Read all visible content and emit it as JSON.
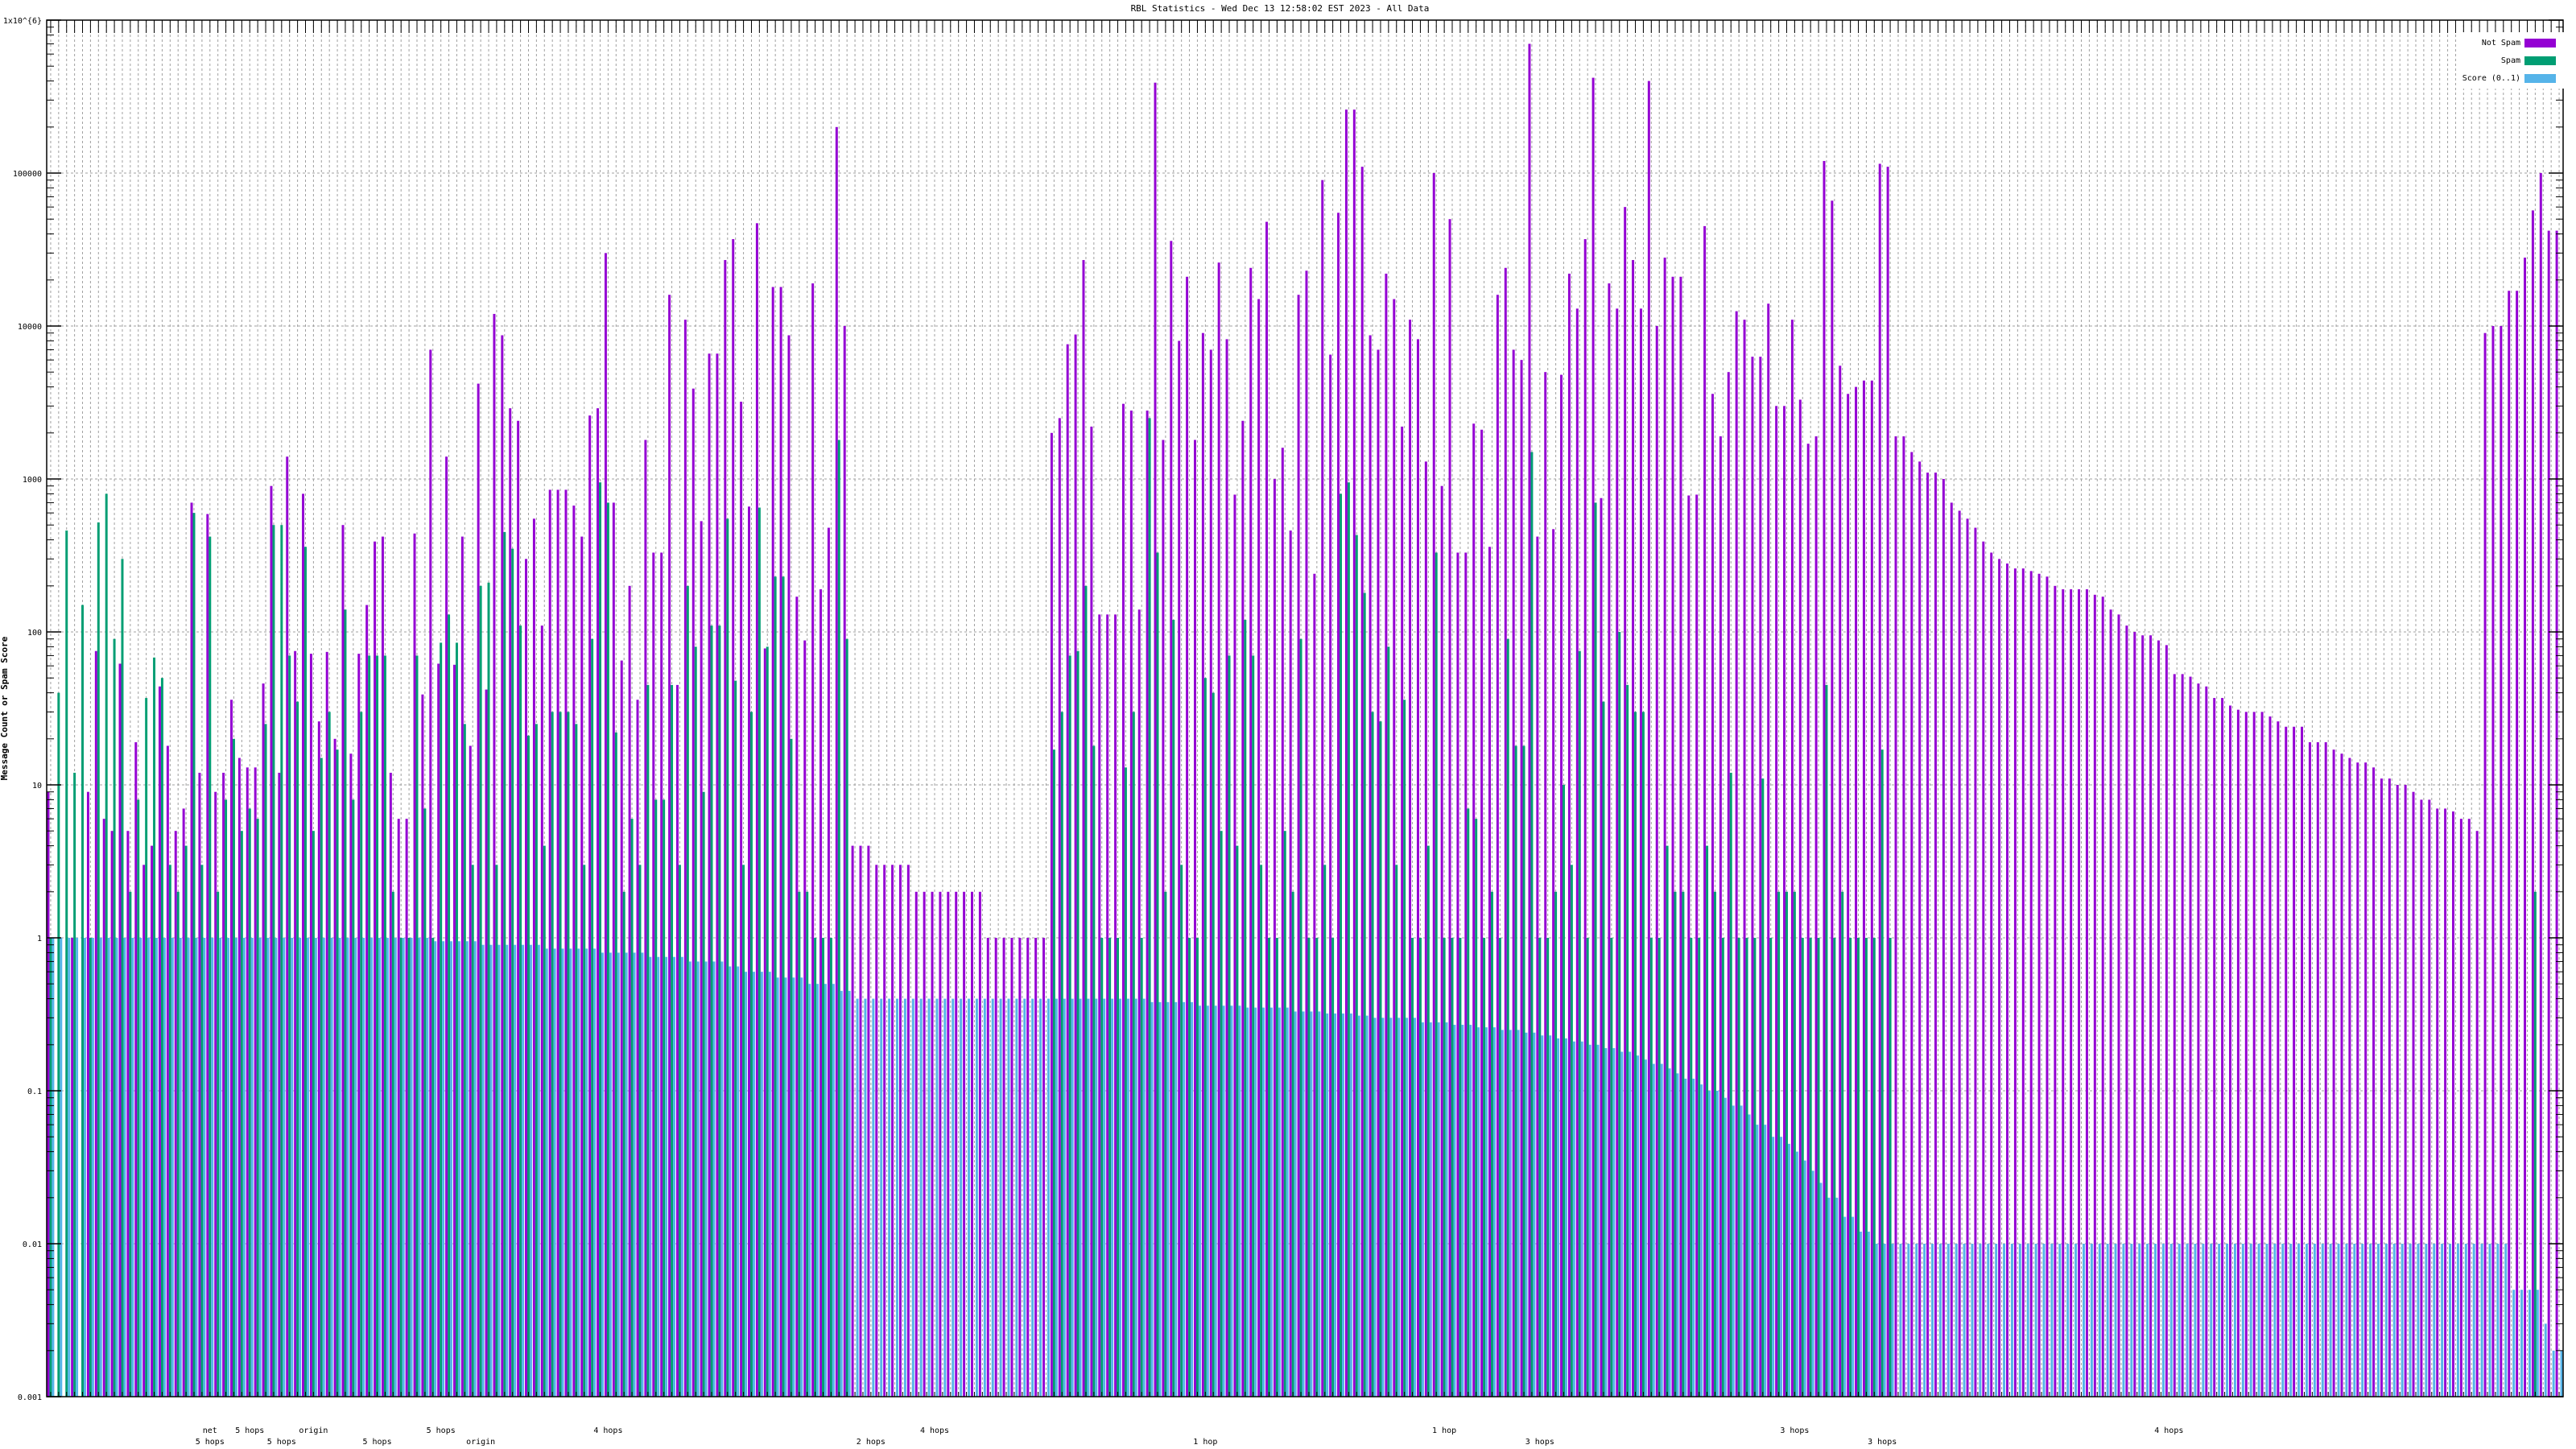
{
  "chart_data": {
    "type": "bar",
    "title": "RBL Statistics - Wed Dec 13 12:58:02 EST 2023 - All Data",
    "ylabel": "Message Count or Spam Score",
    "xlabel": "",
    "yscale": "log",
    "ylim": [
      0.001,
      1000000
    ],
    "y_ticks": [
      "0.001",
      "0.01",
      "0.1",
      "1",
      "10",
      "100",
      "1000",
      "10000",
      "100000",
      "1x10^{6}"
    ],
    "grid": true,
    "legend_position": "top-right",
    "series_names": [
      "Not Spam",
      "Spam",
      "Score (0..1)"
    ],
    "colors": {
      "not_spam": "#9400d3",
      "spam": "#009e73",
      "score": "#56b4e9"
    },
    "x_annotations": [
      {
        "group": 20,
        "text": "net"
      },
      {
        "group": 20,
        "text": "5 hops"
      },
      {
        "group": 25,
        "text": "5 hops"
      },
      {
        "group": 29,
        "text": "5 hops"
      },
      {
        "group": 33,
        "text": "origin"
      },
      {
        "group": 41,
        "text": "5 hops"
      },
      {
        "group": 49,
        "text": "5 hops"
      },
      {
        "group": 54,
        "text": "origin"
      },
      {
        "group": 70,
        "text": "4 hops"
      },
      {
        "group": 103,
        "text": "2 hops"
      },
      {
        "group": 111,
        "text": "4 hops"
      },
      {
        "group": 145,
        "text": "1 hop"
      },
      {
        "group": 175,
        "text": "1 hop"
      },
      {
        "group": 187,
        "text": "3 hops"
      },
      {
        "group": 219,
        "text": "3 hops"
      },
      {
        "group": 230,
        "text": "3 hops"
      },
      {
        "group": 266,
        "text": "4 hops"
      }
    ],
    "groups_format": [
      "not_spam",
      "spam",
      "score"
    ],
    "groups": [
      [
        9,
        1,
        1
      ],
      [
        0,
        40,
        1
      ],
      [
        0,
        460,
        1
      ],
      [
        1,
        12,
        1
      ],
      [
        0,
        150,
        1
      ],
      [
        9,
        1,
        1
      ],
      [
        75,
        520,
        1
      ],
      [
        6,
        800,
        1
      ],
      [
        5,
        90,
        1
      ],
      [
        62,
        300,
        1
      ],
      [
        5,
        2,
        1
      ],
      [
        19,
        8,
        1
      ],
      [
        3,
        37,
        1
      ],
      [
        4,
        68,
        1
      ],
      [
        44,
        50,
        1
      ],
      [
        18,
        3,
        1
      ],
      [
        5,
        2,
        1
      ],
      [
        7,
        4,
        1
      ],
      [
        700,
        600,
        1
      ],
      [
        12,
        3,
        1
      ],
      [
        590,
        420,
        1
      ],
      [
        9,
        2,
        1
      ],
      [
        12,
        8,
        1
      ],
      [
        36,
        20,
        1
      ],
      [
        15,
        5,
        1
      ],
      [
        13,
        7,
        1
      ],
      [
        13,
        6,
        1
      ],
      [
        46,
        25,
        1
      ],
      [
        900,
        500,
        1
      ],
      [
        12,
        500,
        1
      ],
      [
        1400,
        70,
        1
      ],
      [
        75,
        35,
        1
      ],
      [
        800,
        360,
        1
      ],
      [
        72,
        5,
        1
      ],
      [
        26,
        15,
        1
      ],
      [
        74,
        30,
        1
      ],
      [
        20,
        17,
        1
      ],
      [
        500,
        140,
        1
      ],
      [
        16,
        8,
        1
      ],
      [
        72,
        30,
        1
      ],
      [
        150,
        70,
        1
      ],
      [
        390,
        70,
        1
      ],
      [
        420,
        70,
        1
      ],
      [
        12,
        2,
        1
      ],
      [
        6,
        1,
        1
      ],
      [
        6,
        1,
        1
      ],
      [
        440,
        70,
        1
      ],
      [
        39,
        7,
        1
      ],
      [
        7000,
        1,
        0.95
      ],
      [
        62,
        85,
        0.95
      ],
      [
        1400,
        130,
        0.95
      ],
      [
        61,
        85,
        0.95
      ],
      [
        420,
        25,
        0.95
      ],
      [
        18,
        3,
        0.95
      ],
      [
        4200,
        200,
        0.9
      ],
      [
        42,
        210,
        0.9
      ],
      [
        12000,
        3,
        0.9
      ],
      [
        8700,
        450,
        0.9
      ],
      [
        2900,
        350,
        0.9
      ],
      [
        2400,
        110,
        0.9
      ],
      [
        300,
        21,
        0.9
      ],
      [
        550,
        25,
        0.9
      ],
      [
        110,
        4,
        0.85
      ],
      [
        850,
        30,
        0.85
      ],
      [
        850,
        30,
        0.85
      ],
      [
        850,
        30,
        0.85
      ],
      [
        670,
        25,
        0.85
      ],
      [
        420,
        3,
        0.85
      ],
      [
        2600,
        90,
        0.85
      ],
      [
        2900,
        950,
        0.8
      ],
      [
        30000,
        700,
        0.8
      ],
      [
        700,
        22,
        0.8
      ],
      [
        65,
        2,
        0.8
      ],
      [
        200,
        6,
        0.8
      ],
      [
        36,
        3,
        0.8
      ],
      [
        1800,
        45,
        0.75
      ],
      [
        330,
        8,
        0.75
      ],
      [
        330,
        8,
        0.75
      ],
      [
        16000,
        45,
        0.75
      ],
      [
        45,
        3,
        0.75
      ],
      [
        11000,
        200,
        0.7
      ],
      [
        3900,
        80,
        0.7
      ],
      [
        530,
        9,
        0.7
      ],
      [
        6600,
        110,
        0.7
      ],
      [
        6600,
        110,
        0.7
      ],
      [
        27000,
        550,
        0.65
      ],
      [
        37000,
        48,
        0.65
      ],
      [
        3200,
        3,
        0.6
      ],
      [
        660,
        30,
        0.6
      ],
      [
        47000,
        650,
        0.6
      ],
      [
        78,
        80,
        0.6
      ],
      [
        18000,
        230,
        0.55
      ],
      [
        18000,
        230,
        0.55
      ],
      [
        8700,
        20,
        0.55
      ],
      [
        170,
        2,
        0.55
      ],
      [
        88,
        2,
        0.5
      ],
      [
        19000,
        1,
        0.5
      ],
      [
        190,
        1,
        0.5
      ],
      [
        480,
        1,
        0.5
      ],
      [
        200000,
        1800,
        0.45
      ],
      [
        10000,
        90,
        0.45
      ],
      [
        4,
        0,
        0.4
      ],
      [
        4,
        0,
        0.4
      ],
      [
        4,
        0,
        0.4
      ],
      [
        3,
        0,
        0.4
      ],
      [
        3,
        0,
        0.4
      ],
      [
        3,
        0,
        0.4
      ],
      [
        3,
        0,
        0.4
      ],
      [
        3,
        0,
        0.4
      ],
      [
        2,
        0,
        0.4
      ],
      [
        2,
        0,
        0.4
      ],
      [
        2,
        0,
        0.4
      ],
      [
        2,
        0,
        0.4
      ],
      [
        2,
        0,
        0.4
      ],
      [
        2,
        0,
        0.4
      ],
      [
        2,
        0,
        0.4
      ],
      [
        2,
        0,
        0.4
      ],
      [
        2,
        0,
        0.4
      ],
      [
        1,
        0,
        0.4
      ],
      [
        1,
        0,
        0.4
      ],
      [
        1,
        0,
        0.4
      ],
      [
        1,
        0,
        0.4
      ],
      [
        1,
        0,
        0.4
      ],
      [
        1,
        0,
        0.4
      ],
      [
        1,
        0,
        0.4
      ],
      [
        1,
        0,
        0.4
      ],
      [
        2000,
        17,
        0.4
      ],
      [
        2500,
        30,
        0.4
      ],
      [
        7600,
        70,
        0.4
      ],
      [
        8800,
        75,
        0.4
      ],
      [
        27000,
        200,
        0.4
      ],
      [
        2200,
        18,
        0.4
      ],
      [
        130,
        1,
        0.4
      ],
      [
        130,
        1,
        0.4
      ],
      [
        130,
        1,
        0.4
      ],
      [
        3100,
        13,
        0.4
      ],
      [
        2800,
        30,
        0.4
      ],
      [
        140,
        1,
        0.4
      ],
      [
        2800,
        2500,
        0.38
      ],
      [
        390000,
        330,
        0.38
      ],
      [
        1800,
        2,
        0.38
      ],
      [
        36000,
        120,
        0.38
      ],
      [
        8000,
        3,
        0.38
      ],
      [
        21000,
        1,
        0.38
      ],
      [
        1800,
        1,
        0.36
      ],
      [
        9000,
        50,
        0.36
      ],
      [
        7000,
        40,
        0.36
      ],
      [
        26000,
        5,
        0.36
      ],
      [
        8200,
        70,
        0.36
      ],
      [
        790,
        4,
        0.36
      ],
      [
        2400,
        120,
        0.35
      ],
      [
        24000,
        70,
        0.35
      ],
      [
        15000,
        3,
        0.35
      ],
      [
        48000,
        1,
        0.35
      ],
      [
        1000,
        1,
        0.35
      ],
      [
        1600,
        5,
        0.35
      ],
      [
        460,
        2,
        0.33
      ],
      [
        16000,
        90,
        0.33
      ],
      [
        23000,
        1,
        0.33
      ],
      [
        240,
        1,
        0.33
      ],
      [
        90000,
        3,
        0.32
      ],
      [
        6500,
        1,
        0.32
      ],
      [
        55000,
        800,
        0.32
      ],
      [
        260000,
        950,
        0.32
      ],
      [
        260000,
        430,
        0.31
      ],
      [
        110000,
        180,
        0.31
      ],
      [
        8700,
        30,
        0.3
      ],
      [
        7000,
        26,
        0.3
      ],
      [
        22000,
        80,
        0.3
      ],
      [
        15000,
        3,
        0.3
      ],
      [
        2200,
        36,
        0.3
      ],
      [
        11000,
        1,
        0.3
      ],
      [
        8200,
        1,
        0.28
      ],
      [
        1300,
        4,
        0.28
      ],
      [
        100000,
        330,
        0.28
      ],
      [
        900,
        1,
        0.28
      ],
      [
        50000,
        1,
        0.27
      ],
      [
        330,
        1,
        0.27
      ],
      [
        330,
        7,
        0.27
      ],
      [
        2300,
        6,
        0.26
      ],
      [
        2100,
        1,
        0.26
      ],
      [
        360,
        2,
        0.26
      ],
      [
        16000,
        1,
        0.25
      ],
      [
        24000,
        90,
        0.25
      ],
      [
        7000,
        18,
        0.25
      ],
      [
        6000,
        18,
        0.24
      ],
      [
        700000,
        1500,
        0.24
      ],
      [
        420,
        1,
        0.23
      ],
      [
        5000,
        1,
        0.23
      ],
      [
        470,
        2,
        0.22
      ],
      [
        4800,
        10,
        0.22
      ],
      [
        22000,
        3,
        0.21
      ],
      [
        13000,
        75,
        0.21
      ],
      [
        37000,
        1,
        0.2
      ],
      [
        420000,
        700,
        0.2
      ],
      [
        750,
        35,
        0.19
      ],
      [
        19000,
        1,
        0.19
      ],
      [
        13000,
        100,
        0.18
      ],
      [
        60000,
        45,
        0.18
      ],
      [
        27000,
        30,
        0.17
      ],
      [
        13000,
        30,
        0.16
      ],
      [
        400000,
        1,
        0.15
      ],
      [
        10000,
        1,
        0.15
      ],
      [
        28000,
        4,
        0.14
      ],
      [
        21000,
        2,
        0.13
      ],
      [
        21000,
        2,
        0.12
      ],
      [
        780,
        1,
        0.12
      ],
      [
        790,
        1,
        0.11
      ],
      [
        45000,
        4,
        0.1
      ],
      [
        3600,
        2,
        0.1
      ],
      [
        1900,
        1,
        0.09
      ],
      [
        5000,
        12,
        0.08
      ],
      [
        12500,
        1,
        0.08
      ],
      [
        11000,
        1,
        0.07
      ],
      [
        6300,
        1,
        0.06
      ],
      [
        6300,
        11,
        0.06
      ],
      [
        14000,
        1,
        0.05
      ],
      [
        3000,
        2,
        0.05
      ],
      [
        3000,
        2,
        0.045
      ],
      [
        11000,
        2,
        0.04
      ],
      [
        3300,
        1,
        0.035
      ],
      [
        1700,
        1,
        0.03
      ],
      [
        1900,
        1,
        0.025
      ],
      [
        120000,
        45,
        0.02
      ],
      [
        66000,
        1,
        0.02
      ],
      [
        5500,
        2,
        0.015
      ],
      [
        3600,
        1,
        0.015
      ],
      [
        4000,
        1,
        0.012
      ],
      [
        4400,
        1,
        0.012
      ],
      [
        4400,
        1,
        0.01
      ],
      [
        115000,
        17,
        0.01
      ],
      [
        110000,
        1,
        0.01
      ],
      [
        1900,
        0,
        0.01
      ],
      [
        1900,
        0,
        0.01
      ],
      [
        1500,
        0,
        0.01
      ],
      [
        1300,
        0,
        0.01
      ],
      [
        1100,
        0,
        0.01
      ],
      [
        1100,
        0,
        0.01
      ],
      [
        1000,
        0,
        0.01
      ],
      [
        700,
        0,
        0.01
      ],
      [
        620,
        0,
        0.01
      ],
      [
        550,
        0,
        0.01
      ],
      [
        480,
        0,
        0.01
      ],
      [
        390,
        0,
        0.01
      ],
      [
        330,
        0,
        0.01
      ],
      [
        300,
        0,
        0.01
      ],
      [
        280,
        0,
        0.01
      ],
      [
        260,
        0,
        0.01
      ],
      [
        260,
        0,
        0.01
      ],
      [
        250,
        0,
        0.01
      ],
      [
        240,
        0,
        0.01
      ],
      [
        230,
        0,
        0.01
      ],
      [
        200,
        0,
        0.01
      ],
      [
        190,
        0,
        0.01
      ],
      [
        190,
        0,
        0.01
      ],
      [
        190,
        0,
        0.01
      ],
      [
        190,
        0,
        0.01
      ],
      [
        175,
        0,
        0.01
      ],
      [
        170,
        0,
        0.01
      ],
      [
        140,
        0,
        0.01
      ],
      [
        130,
        0,
        0.01
      ],
      [
        110,
        0,
        0.01
      ],
      [
        100,
        0,
        0.01
      ],
      [
        95,
        0,
        0.01
      ],
      [
        95,
        0,
        0.01
      ],
      [
        88,
        0,
        0.01
      ],
      [
        82,
        0,
        0.01
      ],
      [
        53,
        0,
        0.01
      ],
      [
        53,
        0,
        0.01
      ],
      [
        51,
        0,
        0.01
      ],
      [
        46,
        0,
        0.01
      ],
      [
        44,
        0,
        0.01
      ],
      [
        37,
        0,
        0.01
      ],
      [
        37,
        0,
        0.01
      ],
      [
        33,
        0,
        0.01
      ],
      [
        31,
        0,
        0.01
      ],
      [
        30,
        0,
        0.01
      ],
      [
        30,
        0,
        0.01
      ],
      [
        30,
        0,
        0.01
      ],
      [
        28,
        0,
        0.01
      ],
      [
        26,
        0,
        0.01
      ],
      [
        24,
        0,
        0.01
      ],
      [
        24,
        0,
        0.01
      ],
      [
        24,
        0,
        0.01
      ],
      [
        19,
        0,
        0.01
      ],
      [
        19,
        0,
        0.01
      ],
      [
        19,
        0,
        0.01
      ],
      [
        17,
        0,
        0.01
      ],
      [
        16,
        0,
        0.01
      ],
      [
        15,
        0,
        0.01
      ],
      [
        14,
        0,
        0.01
      ],
      [
        14,
        0,
        0.01
      ],
      [
        13,
        0,
        0.01
      ],
      [
        11,
        0,
        0.01
      ],
      [
        11,
        0,
        0.01
      ],
      [
        10,
        0,
        0.01
      ],
      [
        10,
        0,
        0.01
      ],
      [
        9,
        0,
        0.01
      ],
      [
        8,
        0,
        0.01
      ],
      [
        8,
        0,
        0.01
      ],
      [
        7,
        0,
        0.01
      ],
      [
        7,
        0,
        0.01
      ],
      [
        6.7,
        0,
        0.01
      ],
      [
        6,
        0,
        0.01
      ],
      [
        6,
        0,
        0.01
      ],
      [
        5,
        0,
        0.01
      ],
      [
        9000,
        0,
        0.01
      ],
      [
        10000,
        0,
        0.01
      ],
      [
        10000,
        0,
        0.01
      ],
      [
        17000,
        0,
        0.005
      ],
      [
        17000,
        0,
        0.005
      ],
      [
        28000,
        0,
        0.005
      ],
      [
        57000,
        2,
        0.005
      ],
      [
        100000,
        0,
        0.003
      ],
      [
        42000,
        0,
        0.002
      ],
      [
        42000,
        0,
        0.002
      ]
    ]
  }
}
